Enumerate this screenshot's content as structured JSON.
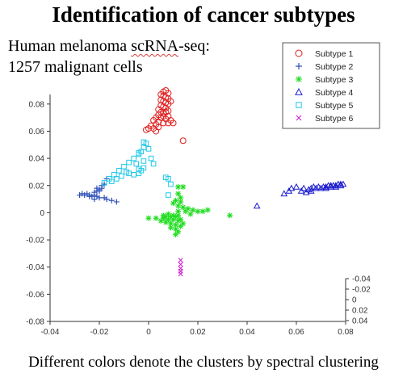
{
  "slide": {
    "title": "Identification of cancer subtypes",
    "subtitle_line1_pre": "Human melanoma ",
    "subtitle_line1_word": "scRNA",
    "subtitle_line1_post": "-seq:",
    "subtitle_line2": "1257 malignant cells",
    "caption": "Different colors denote the clusters by spectral clustering"
  },
  "chart_data": {
    "type": "scatter",
    "xlim": [
      -0.04,
      0.08
    ],
    "ylim": [
      -0.08,
      0.09
    ],
    "zlim": [
      -0.04,
      0.04
    ],
    "x_ticks": [
      "-0.04",
      "-0.02",
      "0",
      "0.02",
      "0.04",
      "0.06",
      "0.08"
    ],
    "y_ticks": [
      "0.08",
      "0.06",
      "0.04",
      "0.02",
      "0",
      "-0.02",
      "-0.04",
      "-0.06",
      "-0.08"
    ],
    "z_ticks": [
      "-0.04",
      "-0.02",
      "0",
      "0.02",
      "0.04"
    ],
    "legend_position": "top-right",
    "series": [
      {
        "name": "Subtype 1",
        "color": "#e02020",
        "marker": "circle",
        "points": [
          [
            0.005,
            0.087
          ],
          [
            0.006,
            0.089
          ],
          [
            0.007,
            0.09
          ],
          [
            0.008,
            0.088
          ],
          [
            0.006,
            0.086
          ],
          [
            0.007,
            0.085
          ],
          [
            0.005,
            0.083
          ],
          [
            0.008,
            0.084
          ],
          [
            0.006,
            0.082
          ],
          [
            0.007,
            0.081
          ],
          [
            0.005,
            0.079
          ],
          [
            0.008,
            0.08
          ],
          [
            0.006,
            0.078
          ],
          [
            0.004,
            0.076
          ],
          [
            0.007,
            0.077
          ],
          [
            0.005,
            0.074
          ],
          [
            0.006,
            0.073
          ],
          [
            0.004,
            0.072
          ],
          [
            0.003,
            0.07
          ],
          [
            0.005,
            0.07
          ],
          [
            0.002,
            0.068
          ],
          [
            0.004,
            0.067
          ],
          [
            0.003,
            0.065
          ],
          [
            0.001,
            0.064
          ],
          [
            0.0,
            0.062
          ],
          [
            -0.001,
            0.061
          ],
          [
            0.002,
            0.062
          ],
          [
            0.004,
            0.063
          ],
          [
            0.006,
            0.066
          ],
          [
            0.008,
            0.071
          ],
          [
            0.007,
            0.069
          ],
          [
            0.008,
            0.075
          ],
          [
            0.009,
            0.082
          ],
          [
            0.007,
            0.074
          ],
          [
            0.003,
            0.06
          ],
          [
            0.009,
            0.068
          ],
          [
            0.01,
            0.066
          ],
          [
            0.014,
            0.053
          ],
          [
            0.008,
            0.066
          ],
          [
            0.006,
            0.071
          ]
        ]
      },
      {
        "name": "Subtype 2",
        "color": "#3050b8",
        "marker": "plus",
        "points": [
          [
            -0.028,
            0.013
          ],
          [
            -0.027,
            0.014
          ],
          [
            -0.026,
            0.013
          ],
          [
            -0.025,
            0.014
          ],
          [
            -0.024,
            0.013
          ],
          [
            -0.023,
            0.012
          ],
          [
            -0.022,
            0.013
          ],
          [
            -0.021,
            0.012
          ],
          [
            -0.022,
            0.015
          ],
          [
            -0.021,
            0.016
          ],
          [
            -0.02,
            0.017
          ],
          [
            -0.019,
            0.018
          ],
          [
            -0.02,
            0.016
          ],
          [
            -0.021,
            0.018
          ],
          [
            -0.019,
            0.02
          ],
          [
            -0.018,
            0.021
          ],
          [
            -0.017,
            0.025
          ],
          [
            -0.02,
            0.011
          ],
          [
            -0.018,
            0.011
          ],
          [
            -0.017,
            0.01
          ],
          [
            -0.015,
            0.009
          ],
          [
            -0.013,
            0.008
          ],
          [
            -0.022,
            0.01
          ],
          [
            -0.024,
            0.012
          ]
        ]
      },
      {
        "name": "Subtype 3",
        "color": "#22dd22",
        "marker": "asterisk",
        "points": [
          [
            0.012,
            0.019
          ],
          [
            0.014,
            0.019
          ],
          [
            0.012,
            0.014
          ],
          [
            0.013,
            0.011
          ],
          [
            0.011,
            0.009
          ],
          [
            0.013,
            0.008
          ],
          [
            0.01,
            0.007
          ],
          [
            0.012,
            0.005
          ],
          [
            0.014,
            0.004
          ],
          [
            0.016,
            0.003
          ],
          [
            0.018,
            0.002
          ],
          [
            0.02,
            0.001
          ],
          [
            0.022,
            0.001
          ],
          [
            0.024,
            0.002
          ],
          [
            0.015,
            0.001
          ],
          [
            0.017,
            -0.001
          ],
          [
            0.012,
            0.001
          ],
          [
            0.008,
            -0.001
          ],
          [
            0.01,
            -0.002
          ],
          [
            0.012,
            -0.002
          ],
          [
            0.006,
            -0.004
          ],
          [
            0.008,
            -0.005
          ],
          [
            0.01,
            -0.005
          ],
          [
            0.012,
            -0.006
          ],
          [
            0.009,
            -0.008
          ],
          [
            0.011,
            -0.009
          ],
          [
            0.013,
            -0.01
          ],
          [
            0.011,
            -0.012
          ],
          [
            0.012,
            -0.014
          ],
          [
            0.011,
            -0.016
          ],
          [
            0.009,
            -0.011
          ],
          [
            0.007,
            -0.007
          ],
          [
            0.005,
            -0.006
          ],
          [
            0.007,
            -0.003
          ],
          [
            0.003,
            -0.004
          ],
          [
            0.009,
            -0.003
          ],
          [
            0.014,
            -0.008
          ],
          [
            0.006,
            -0.002
          ],
          [
            0.0,
            -0.004
          ],
          [
            0.011,
            -0.003
          ],
          [
            0.013,
            -0.005
          ],
          [
            0.033,
            -0.002
          ]
        ]
      },
      {
        "name": "Subtype 4",
        "color": "#1a1acc",
        "marker": "triangle",
        "points": [
          [
            0.044,
            0.005
          ],
          [
            0.055,
            0.014
          ],
          [
            0.057,
            0.016
          ],
          [
            0.058,
            0.018
          ],
          [
            0.06,
            0.019
          ],
          [
            0.062,
            0.016
          ],
          [
            0.063,
            0.018
          ],
          [
            0.065,
            0.017
          ],
          [
            0.066,
            0.018
          ],
          [
            0.067,
            0.019
          ],
          [
            0.068,
            0.018
          ],
          [
            0.069,
            0.019
          ],
          [
            0.07,
            0.018
          ],
          [
            0.071,
            0.019
          ],
          [
            0.072,
            0.019
          ],
          [
            0.073,
            0.02
          ],
          [
            0.074,
            0.02
          ],
          [
            0.075,
            0.02
          ],
          [
            0.076,
            0.02
          ],
          [
            0.077,
            0.021
          ],
          [
            0.078,
            0.021
          ],
          [
            0.079,
            0.021
          ],
          [
            0.072,
            0.018
          ],
          [
            0.074,
            0.019
          ],
          [
            0.076,
            0.019
          ],
          [
            0.078,
            0.02
          ],
          [
            0.064,
            0.015
          ],
          [
            0.066,
            0.016
          ]
        ]
      },
      {
        "name": "Subtype 5",
        "color": "#22c8e8",
        "marker": "square",
        "points": [
          [
            -0.018,
            0.022
          ],
          [
            -0.016,
            0.025
          ],
          [
            -0.014,
            0.028
          ],
          [
            -0.012,
            0.031
          ],
          [
            -0.01,
            0.034
          ],
          [
            -0.008,
            0.037
          ],
          [
            -0.006,
            0.04
          ],
          [
            -0.004,
            0.043
          ],
          [
            -0.003,
            0.045
          ],
          [
            -0.002,
            0.048
          ],
          [
            -0.005,
            0.036
          ],
          [
            -0.003,
            0.031
          ],
          [
            -0.006,
            0.028
          ],
          [
            -0.009,
            0.03
          ],
          [
            -0.011,
            0.027
          ],
          [
            -0.013,
            0.025
          ],
          [
            -0.015,
            0.023
          ],
          [
            -0.004,
            0.029
          ],
          [
            -0.008,
            0.029
          ],
          [
            0.0,
            0.047
          ],
          [
            -0.001,
            0.051
          ],
          [
            -0.002,
            0.052
          ],
          [
            0.001,
            0.04
          ],
          [
            0.002,
            0.036
          ],
          [
            -0.002,
            0.033
          ],
          [
            -0.004,
            0.032
          ],
          [
            0.007,
            0.026
          ],
          [
            0.008,
            0.025
          ],
          [
            0.009,
            0.021
          ],
          [
            0.008,
            0.013
          ],
          [
            -0.004,
            0.044
          ],
          [
            -0.002,
            0.038
          ]
        ]
      },
      {
        "name": "Subtype 6",
        "color": "#cc22cc",
        "marker": "x",
        "points": [
          [
            0.013,
            -0.035
          ],
          [
            0.013,
            -0.038
          ],
          [
            0.013,
            -0.041
          ],
          [
            0.013,
            -0.043
          ],
          [
            0.013,
            -0.045
          ]
        ]
      }
    ]
  }
}
